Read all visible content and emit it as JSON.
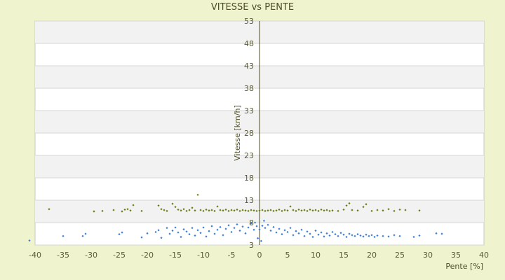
{
  "chart_data": {
    "type": "scatter",
    "title": "VITESSE vs PENTE",
    "xlabel": "Pente [%]",
    "ylabel": "Vitesse [km/h]",
    "xlim": [
      -40,
      40
    ],
    "ylim": [
      3,
      53
    ],
    "x_ticks": [
      "-40",
      "-35",
      "-30",
      "-25",
      "-20",
      "-15",
      "-10",
      "-5",
      "0",
      "5",
      "10",
      "15",
      "20",
      "25",
      "30",
      "35",
      "40"
    ],
    "y_ticks": [
      "3",
      "8",
      "13",
      "18",
      "23",
      "28",
      "33",
      "38",
      "43",
      "48",
      "53"
    ],
    "grid": "horizontal bands",
    "series": [
      {
        "color": "#6b7d16",
        "points": [
          [
            -37.5,
            11.0
          ],
          [
            -29.5,
            10.5
          ],
          [
            -28.0,
            10.6
          ],
          [
            -26.0,
            10.8
          ],
          [
            -24.5,
            10.5
          ],
          [
            -24.0,
            10.9
          ],
          [
            -23.5,
            11.0
          ],
          [
            -23.0,
            10.7
          ],
          [
            -22.5,
            11.9
          ],
          [
            -21.0,
            10.6
          ],
          [
            -18.0,
            11.8
          ],
          [
            -17.5,
            11.0
          ],
          [
            -17.0,
            10.8
          ],
          [
            -16.5,
            10.6
          ],
          [
            -15.5,
            12.2
          ],
          [
            -15.0,
            11.5
          ],
          [
            -14.5,
            10.9
          ],
          [
            -14.0,
            10.7
          ],
          [
            -13.5,
            11.0
          ],
          [
            -13.0,
            10.6
          ],
          [
            -12.5,
            10.8
          ],
          [
            -12.0,
            11.3
          ],
          [
            -11.5,
            10.7
          ],
          [
            -11.0,
            14.2
          ],
          [
            -10.5,
            10.8
          ],
          [
            -10.0,
            10.6
          ],
          [
            -9.5,
            10.9
          ],
          [
            -9.0,
            10.7
          ],
          [
            -8.5,
            10.8
          ],
          [
            -8.0,
            10.6
          ],
          [
            -7.5,
            11.6
          ],
          [
            -7.0,
            10.8
          ],
          [
            -6.5,
            10.7
          ],
          [
            -6.0,
            10.9
          ],
          [
            -5.5,
            10.6
          ],
          [
            -5.0,
            10.8
          ],
          [
            -4.5,
            10.7
          ],
          [
            -4.0,
            10.9
          ],
          [
            -3.5,
            10.6
          ],
          [
            -3.0,
            10.8
          ],
          [
            -2.5,
            10.7
          ],
          [
            -2.0,
            10.6
          ],
          [
            -1.5,
            10.8
          ],
          [
            -1.0,
            10.7
          ],
          [
            -0.5,
            10.6
          ],
          [
            0.0,
            10.7
          ],
          [
            0.5,
            10.8
          ],
          [
            1.0,
            10.6
          ],
          [
            1.5,
            10.7
          ],
          [
            2.0,
            10.8
          ],
          [
            2.5,
            10.6
          ],
          [
            3.0,
            10.7
          ],
          [
            3.5,
            10.9
          ],
          [
            4.0,
            10.6
          ],
          [
            4.5,
            10.8
          ],
          [
            5.0,
            10.7
          ],
          [
            5.5,
            11.6
          ],
          [
            6.0,
            10.8
          ],
          [
            6.5,
            10.6
          ],
          [
            7.0,
            10.9
          ],
          [
            7.5,
            10.7
          ],
          [
            8.0,
            10.8
          ],
          [
            8.5,
            10.6
          ],
          [
            9.0,
            10.9
          ],
          [
            9.5,
            10.7
          ],
          [
            10.0,
            10.8
          ],
          [
            10.5,
            10.6
          ],
          [
            11.0,
            10.9
          ],
          [
            11.5,
            10.7
          ],
          [
            12.0,
            10.8
          ],
          [
            12.5,
            10.6
          ],
          [
            13.0,
            10.7
          ],
          [
            14.0,
            10.6
          ],
          [
            15.0,
            10.9
          ],
          [
            15.5,
            11.8
          ],
          [
            16.0,
            12.3
          ],
          [
            16.5,
            10.8
          ],
          [
            17.5,
            10.7
          ],
          [
            18.5,
            11.5
          ],
          [
            19.0,
            12.1
          ],
          [
            20.0,
            10.6
          ],
          [
            21.0,
            10.8
          ],
          [
            22.0,
            10.7
          ],
          [
            23.0,
            11.0
          ],
          [
            24.0,
            10.6
          ],
          [
            25.0,
            10.9
          ],
          [
            26.0,
            10.8
          ],
          [
            28.5,
            10.7
          ]
        ]
      },
      {
        "color": "#3b7ddd",
        "points": [
          [
            -41.0,
            4.0
          ],
          [
            -35.0,
            5.0
          ],
          [
            -31.5,
            5.0
          ],
          [
            -31.0,
            5.5
          ],
          [
            -25.0,
            5.4
          ],
          [
            -24.5,
            5.8
          ],
          [
            -21.0,
            4.7
          ],
          [
            -20.0,
            5.6
          ],
          [
            -18.5,
            5.9
          ],
          [
            -18.0,
            6.3
          ],
          [
            -17.5,
            4.6
          ],
          [
            -16.5,
            6.8
          ],
          [
            -16.0,
            5.5
          ],
          [
            -15.5,
            6.2
          ],
          [
            -15.0,
            6.9
          ],
          [
            -14.5,
            5.8
          ],
          [
            -14.0,
            4.8
          ],
          [
            -13.5,
            6.5
          ],
          [
            -13.0,
            6.0
          ],
          [
            -12.5,
            5.4
          ],
          [
            -12.0,
            6.8
          ],
          [
            -11.5,
            5.1
          ],
          [
            -11.0,
            6.3
          ],
          [
            -10.5,
            5.7
          ],
          [
            -10.0,
            6.9
          ],
          [
            -9.5,
            4.9
          ],
          [
            -9.0,
            6.1
          ],
          [
            -8.5,
            7.2
          ],
          [
            -8.0,
            5.5
          ],
          [
            -7.5,
            6.4
          ],
          [
            -7.0,
            7.0
          ],
          [
            -6.5,
            5.2
          ],
          [
            -6.0,
            6.6
          ],
          [
            -5.5,
            7.4
          ],
          [
            -5.0,
            5.9
          ],
          [
            -4.5,
            6.8
          ],
          [
            -4.0,
            7.6
          ],
          [
            -3.5,
            6.2
          ],
          [
            -3.0,
            7.1
          ],
          [
            -2.5,
            5.6
          ],
          [
            -2.0,
            6.9
          ],
          [
            -1.5,
            7.8
          ],
          [
            -1.0,
            6.4
          ],
          [
            -0.8,
            8.0
          ],
          [
            -0.5,
            7.2
          ],
          [
            -0.3,
            4.5
          ],
          [
            0.0,
            6.5
          ],
          [
            0.3,
            3.9
          ],
          [
            0.5,
            7.3
          ],
          [
            0.8,
            8.4
          ],
          [
            1.0,
            6.8
          ],
          [
            1.5,
            7.5
          ],
          [
            2.0,
            6.2
          ],
          [
            2.5,
            7.0
          ],
          [
            3.0,
            5.8
          ],
          [
            3.5,
            6.6
          ],
          [
            4.0,
            5.4
          ],
          [
            4.5,
            6.3
          ],
          [
            5.0,
            5.9
          ],
          [
            5.5,
            6.8
          ],
          [
            6.0,
            5.2
          ],
          [
            6.5,
            6.1
          ],
          [
            7.0,
            5.6
          ],
          [
            7.5,
            6.4
          ],
          [
            8.0,
            5.0
          ],
          [
            8.5,
            6.0
          ],
          [
            9.0,
            5.5
          ],
          [
            9.5,
            4.8
          ],
          [
            10.0,
            6.2
          ],
          [
            10.5,
            5.3
          ],
          [
            11.0,
            5.8
          ],
          [
            11.5,
            4.9
          ],
          [
            12.0,
            5.6
          ],
          [
            12.5,
            5.1
          ],
          [
            13.0,
            5.9
          ],
          [
            13.5,
            5.4
          ],
          [
            14.0,
            5.0
          ],
          [
            14.5,
            5.7
          ],
          [
            15.0,
            5.3
          ],
          [
            15.5,
            4.8
          ],
          [
            16.0,
            5.5
          ],
          [
            16.5,
            5.2
          ],
          [
            17.0,
            5.0
          ],
          [
            17.5,
            5.4
          ],
          [
            18.0,
            5.1
          ],
          [
            18.5,
            4.9
          ],
          [
            19.0,
            5.3
          ],
          [
            19.5,
            5.0
          ],
          [
            20.0,
            5.2
          ],
          [
            20.5,
            4.8
          ],
          [
            21.0,
            5.1
          ],
          [
            22.0,
            5.0
          ],
          [
            23.0,
            4.9
          ],
          [
            24.0,
            5.2
          ],
          [
            25.0,
            5.0
          ],
          [
            27.5,
            4.8
          ],
          [
            28.5,
            5.1
          ],
          [
            31.5,
            5.6
          ],
          [
            32.5,
            5.5
          ]
        ]
      }
    ]
  }
}
